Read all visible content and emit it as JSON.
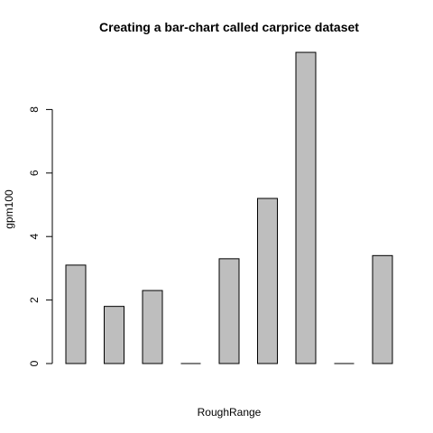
{
  "chart_data": {
    "type": "bar",
    "title": "Creating a bar-chart called carprice dataset",
    "xlabel": "RoughRange",
    "ylabel": "gpm100",
    "values": [
      3.1,
      1.8,
      2.3,
      0.02,
      3.3,
      5.2,
      9.8,
      0.02,
      3.4
    ],
    "ylim": [
      0,
      9.8
    ],
    "yticks": [
      "0",
      "2",
      "4",
      "6",
      "8"
    ],
    "bar_color": "#bebebe",
    "grid": false,
    "legend": "none"
  }
}
